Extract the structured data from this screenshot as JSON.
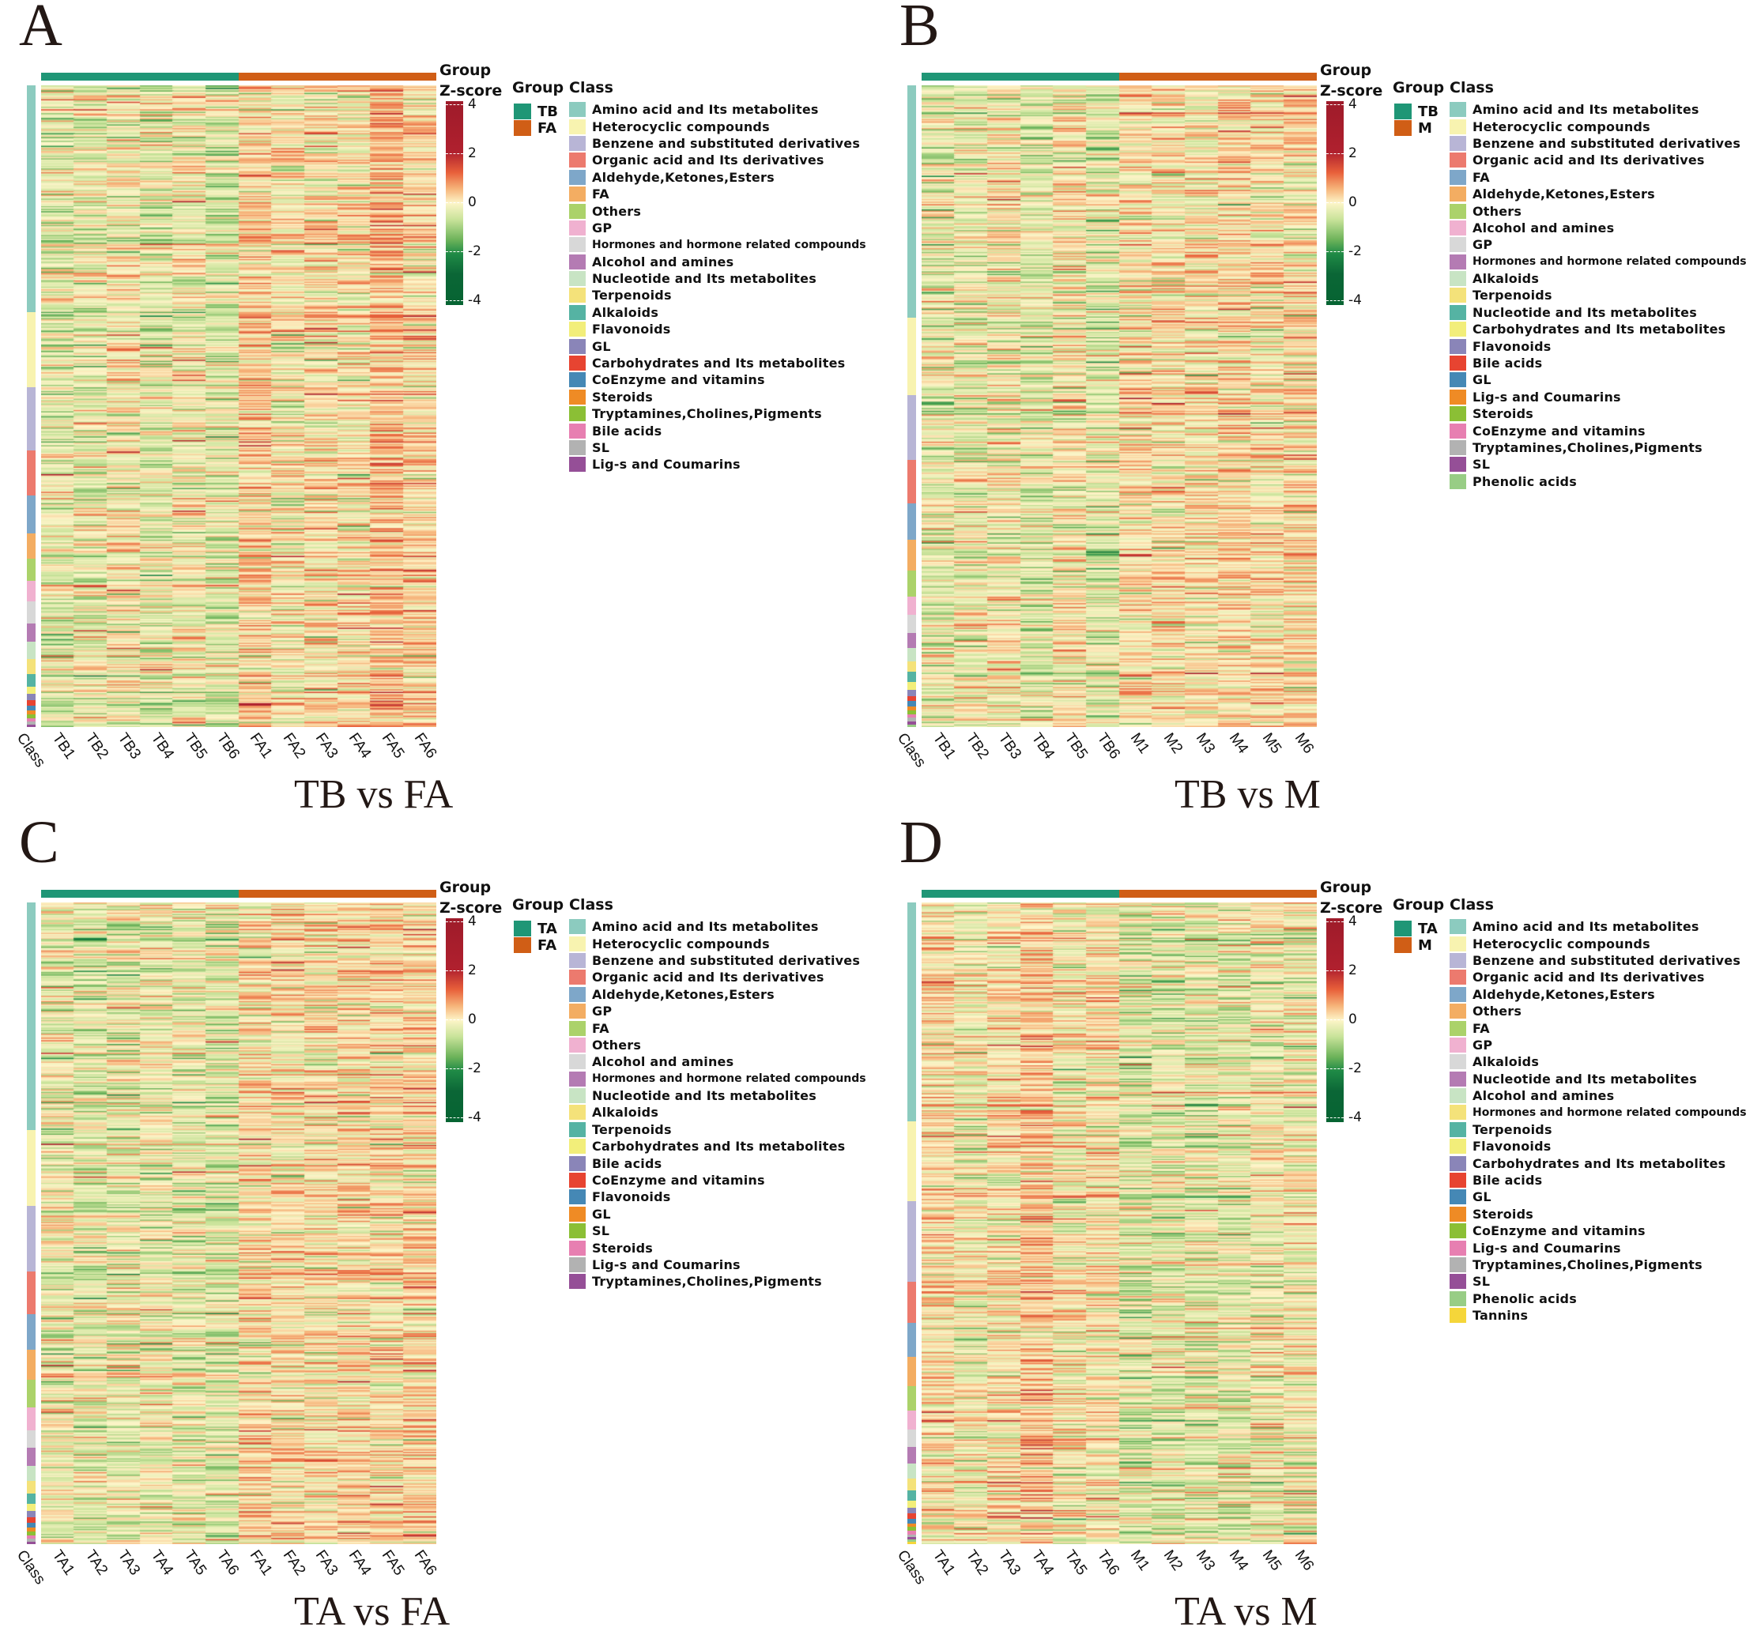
{
  "figure": {
    "zscore_title_line1": "Group",
    "zscore_title_line2": "Z-score",
    "zscore_ticks": [
      "4",
      "2",
      "0",
      "-2",
      "-4"
    ],
    "group_legend_title": "Group",
    "class_legend_title": "Class",
    "class_axis_label": "Class",
    "colormap": [
      "#066432",
      "#1f8a46",
      "#6db35a",
      "#c9e39a",
      "#fdf5c8",
      "#f6b47a",
      "#e8603a",
      "#b0202e",
      "#9e1b2a"
    ],
    "group_colors": {
      "treatment": "#1f9676",
      "control": "#d05e16"
    }
  },
  "panels": [
    {
      "letter": "A",
      "subtitle": "TB vs FA",
      "groups": [
        {
          "name": "TB",
          "color": "#1f9676"
        },
        {
          "name": "FA",
          "color": "#d05e16"
        }
      ],
      "samples": [
        "TB1",
        "TB2",
        "TB3",
        "TB4",
        "TB5",
        "TB6",
        "FA1",
        "FA2",
        "FA3",
        "FA4",
        "FA5",
        "FA6"
      ],
      "classes": [
        {
          "name": "Amino acid and Its metabolites",
          "color": "#8ccbbf",
          "rows": 180
        },
        {
          "name": "Heterocyclic compounds",
          "color": "#f8f3b0",
          "rows": 60
        },
        {
          "name": "Benzene and substituted derivatives",
          "color": "#b8b5d6",
          "rows": 50
        },
        {
          "name": "Organic acid and Its derivatives",
          "color": "#ec7a6e",
          "rows": 36
        },
        {
          "name": "Aldehyde,Ketones,Esters",
          "color": "#7ea7c9",
          "rows": 30
        },
        {
          "name": "FA",
          "color": "#f3ad62",
          "rows": 20
        },
        {
          "name": "Others",
          "color": "#abd26a",
          "rows": 18
        },
        {
          "name": "GP",
          "color": "#f0b1d0",
          "rows": 16
        },
        {
          "name": "Hormones and hormone related compounds",
          "color": "#d8d8d8",
          "rows": 18,
          "small": true
        },
        {
          "name": "Alcohol and amines",
          "color": "#b47bb3",
          "rows": 14
        },
        {
          "name": "Nucleotide and Its metabolites",
          "color": "#c8e4c4",
          "rows": 14
        },
        {
          "name": "Terpenoids",
          "color": "#f4e27a",
          "rows": 12
        },
        {
          "name": "Alkaloids",
          "color": "#55b3a3",
          "rows": 10
        },
        {
          "name": "Flavonoids",
          "color": "#f2ee7a",
          "rows": 6
        },
        {
          "name": "GL",
          "color": "#8a85b8",
          "rows": 5
        },
        {
          "name": "Carbohydrates and Its metabolites",
          "color": "#e74431",
          "rows": 4
        },
        {
          "name": "CoEnzyme and vitamins",
          "color": "#4588b5",
          "rows": 4
        },
        {
          "name": "Steroids",
          "color": "#ef8b25",
          "rows": 3
        },
        {
          "name": "Tryptamines,Cholines,Pigments",
          "color": "#8bbf35",
          "rows": 3
        },
        {
          "name": "Bile acids",
          "color": "#e77fb1",
          "rows": 3
        },
        {
          "name": "SL",
          "color": "#b2b2b2",
          "rows": 2
        },
        {
          "name": "Lig-s and Coumarins",
          "color": "#954f97",
          "rows": 2
        }
      ],
      "bias": [
        -0.5,
        -0.3,
        0.0,
        -0.5,
        -0.1,
        -0.6,
        0.6,
        0.1,
        0.3,
        0.2,
        1.0,
        0.5
      ]
    },
    {
      "letter": "B",
      "subtitle": "TB vs M",
      "groups": [
        {
          "name": "TB",
          "color": "#1f9676"
        },
        {
          "name": "M",
          "color": "#d05e16"
        }
      ],
      "samples": [
        "TB1",
        "TB2",
        "TB3",
        "TB4",
        "TB5",
        "TB6",
        "M1",
        "M2",
        "M3",
        "M4",
        "M5",
        "M6"
      ],
      "classes": [
        {
          "name": "Amino acid and Its metabolites",
          "color": "#8ccbbf",
          "rows": 180
        },
        {
          "name": "Heterocyclic compounds",
          "color": "#f8f3b0",
          "rows": 60
        },
        {
          "name": "Benzene and substituted derivatives",
          "color": "#b8b5d6",
          "rows": 50
        },
        {
          "name": "Organic acid and Its derivatives",
          "color": "#ec7a6e",
          "rows": 34
        },
        {
          "name": "FA",
          "color": "#7ea7c9",
          "rows": 28
        },
        {
          "name": "Aldehyde,Ketones,Esters",
          "color": "#f3ad62",
          "rows": 24
        },
        {
          "name": "Others",
          "color": "#abd26a",
          "rows": 20
        },
        {
          "name": "Alcohol and amines",
          "color": "#f0b1d0",
          "rows": 14
        },
        {
          "name": "GP",
          "color": "#d8d8d8",
          "rows": 14
        },
        {
          "name": "Hormones and hormone related compounds",
          "color": "#b47bb3",
          "rows": 12,
          "small": true
        },
        {
          "name": "Alkaloids",
          "color": "#c8e4c4",
          "rows": 10
        },
        {
          "name": "Terpenoids",
          "color": "#f4e27a",
          "rows": 8
        },
        {
          "name": "Nucleotide and Its metabolites",
          "color": "#55b3a3",
          "rows": 8
        },
        {
          "name": "Carbohydrates and Its metabolites",
          "color": "#f2ee7a",
          "rows": 6
        },
        {
          "name": "Flavonoids",
          "color": "#8a85b8",
          "rows": 5
        },
        {
          "name": "Bile acids",
          "color": "#e74431",
          "rows": 4
        },
        {
          "name": "GL",
          "color": "#4588b5",
          "rows": 4
        },
        {
          "name": "Lig-s and Coumarins",
          "color": "#ef8b25",
          "rows": 3
        },
        {
          "name": "Steroids",
          "color": "#8bbf35",
          "rows": 3
        },
        {
          "name": "CoEnzyme and vitamins",
          "color": "#e77fb1",
          "rows": 3
        },
        {
          "name": "Tryptamines,Cholines,Pigments",
          "color": "#b2b2b2",
          "rows": 3
        },
        {
          "name": "SL",
          "color": "#954f97",
          "rows": 2
        },
        {
          "name": "Phenolic acids",
          "color": "#98cd85",
          "rows": 2
        }
      ],
      "bias": [
        -0.4,
        -0.3,
        0.0,
        -0.5,
        0.1,
        -0.5,
        0.3,
        0.2,
        0.2,
        0.4,
        0.2,
        0.4
      ]
    },
    {
      "letter": "C",
      "subtitle": "TA vs FA",
      "groups": [
        {
          "name": "TA",
          "color": "#1f9676"
        },
        {
          "name": "FA",
          "color": "#d05e16"
        }
      ],
      "samples": [
        "TA1",
        "TA2",
        "TA3",
        "TA4",
        "TA5",
        "TA6",
        "FA1",
        "FA2",
        "FA3",
        "FA4",
        "FA5",
        "FA6"
      ],
      "classes": [
        {
          "name": "Amino acid and Its metabolites",
          "color": "#8ccbbf",
          "rows": 180
        },
        {
          "name": "Heterocyclic compounds",
          "color": "#f8f3b0",
          "rows": 60
        },
        {
          "name": "Benzene and substituted derivatives",
          "color": "#b8b5d6",
          "rows": 52
        },
        {
          "name": "Organic acid and Its derivatives",
          "color": "#ec7a6e",
          "rows": 34
        },
        {
          "name": "Aldehyde,Ketones,Esters",
          "color": "#7ea7c9",
          "rows": 28
        },
        {
          "name": "GP",
          "color": "#f3ad62",
          "rows": 24
        },
        {
          "name": "FA",
          "color": "#abd26a",
          "rows": 22
        },
        {
          "name": "Others",
          "color": "#f0b1d0",
          "rows": 18
        },
        {
          "name": "Alcohol and amines",
          "color": "#d8d8d8",
          "rows": 14
        },
        {
          "name": "Hormones and hormone related compounds",
          "color": "#b47bb3",
          "rows": 14,
          "small": true
        },
        {
          "name": "Nucleotide and Its metabolites",
          "color": "#c8e4c4",
          "rows": 12
        },
        {
          "name": "Alkaloids",
          "color": "#f4e27a",
          "rows": 10
        },
        {
          "name": "Terpenoids",
          "color": "#55b3a3",
          "rows": 8
        },
        {
          "name": "Carbohydrates and Its metabolites",
          "color": "#f2ee7a",
          "rows": 6
        },
        {
          "name": "Bile acids",
          "color": "#8a85b8",
          "rows": 5
        },
        {
          "name": "CoEnzyme and vitamins",
          "color": "#e74431",
          "rows": 4
        },
        {
          "name": "Flavonoids",
          "color": "#4588b5",
          "rows": 4
        },
        {
          "name": "GL",
          "color": "#ef8b25",
          "rows": 3
        },
        {
          "name": "SL",
          "color": "#8bbf35",
          "rows": 3
        },
        {
          "name": "Steroids",
          "color": "#e77fb1",
          "rows": 3
        },
        {
          "name": "Lig-s and Coumarins",
          "color": "#b2b2b2",
          "rows": 2
        },
        {
          "name": "Tryptamines,Cholines,Pigments",
          "color": "#954f97",
          "rows": 2
        }
      ],
      "bias": [
        -0.3,
        -0.5,
        -0.3,
        -0.2,
        -0.4,
        -0.5,
        0.4,
        0.3,
        0.3,
        0.4,
        0.4,
        0.5
      ]
    },
    {
      "letter": "D",
      "subtitle": "TA vs M",
      "groups": [
        {
          "name": "TA",
          "color": "#1f9676"
        },
        {
          "name": "M",
          "color": "#d05e16"
        }
      ],
      "samples": [
        "TA1",
        "TA2",
        "TA3",
        "TA4",
        "TA5",
        "TA6",
        "M1",
        "M2",
        "M3",
        "M4",
        "M5",
        "M6"
      ],
      "classes": [
        {
          "name": "Amino acid and Its metabolites",
          "color": "#8ccbbf",
          "rows": 180
        },
        {
          "name": "Heterocyclic compounds",
          "color": "#f8f3b0",
          "rows": 66
        },
        {
          "name": "Benzene and substituted derivatives",
          "color": "#b8b5d6",
          "rows": 66
        },
        {
          "name": "Organic acid and Its derivatives",
          "color": "#ec7a6e",
          "rows": 34
        },
        {
          "name": "Aldehyde,Ketones,Esters",
          "color": "#7ea7c9",
          "rows": 28
        },
        {
          "name": "Others",
          "color": "#f3ad62",
          "rows": 24
        },
        {
          "name": "FA",
          "color": "#abd26a",
          "rows": 20
        },
        {
          "name": "GP",
          "color": "#f0b1d0",
          "rows": 16
        },
        {
          "name": "Alkaloids",
          "color": "#d8d8d8",
          "rows": 14
        },
        {
          "name": "Nucleotide and Its metabolites",
          "color": "#b47bb3",
          "rows": 14
        },
        {
          "name": "Alcohol and amines",
          "color": "#c8e4c4",
          "rows": 12
        },
        {
          "name": "Hormones and hormone related compounds",
          "color": "#f4e27a",
          "rows": 10,
          "small": true
        },
        {
          "name": "Terpenoids",
          "color": "#55b3a3",
          "rows": 8
        },
        {
          "name": "Flavonoids",
          "color": "#f2ee7a",
          "rows": 6
        },
        {
          "name": "Carbohydrates and Its metabolites",
          "color": "#8a85b8",
          "rows": 5
        },
        {
          "name": "Bile acids",
          "color": "#e74431",
          "rows": 4
        },
        {
          "name": "GL",
          "color": "#4588b5",
          "rows": 4
        },
        {
          "name": "Steroids",
          "color": "#ef8b25",
          "rows": 3
        },
        {
          "name": "CoEnzyme and vitamins",
          "color": "#8bbf35",
          "rows": 3
        },
        {
          "name": "Lig-s and Coumarins",
          "color": "#e77fb1",
          "rows": 3
        },
        {
          "name": "Tryptamines,Cholines,Pigments",
          "color": "#b2b2b2",
          "rows": 2
        },
        {
          "name": "SL",
          "color": "#954f97",
          "rows": 2
        },
        {
          "name": "Phenolic acids",
          "color": "#98cd85",
          "rows": 2
        },
        {
          "name": "Tannins",
          "color": "#f5d63a",
          "rows": 2
        }
      ],
      "bias": [
        0.4,
        -0.1,
        0.3,
        0.8,
        0.0,
        0.2,
        -0.6,
        -0.5,
        -0.5,
        -0.4,
        -0.2,
        -0.2
      ]
    }
  ],
  "chart_data": [
    {
      "type": "heatmap",
      "title": "TB vs FA",
      "panel": "A",
      "x": [
        "TB1",
        "TB2",
        "TB3",
        "TB4",
        "TB5",
        "TB6",
        "FA1",
        "FA2",
        "FA3",
        "FA4",
        "FA5",
        "FA6"
      ],
      "row_annotation": "Class",
      "column_annotation": "Group",
      "groups": [
        "TB",
        "FA"
      ],
      "colorbar": {
        "label": "Z-score",
        "range": [
          -4,
          4
        ],
        "ticks": [
          4,
          2,
          0,
          -2,
          -4
        ]
      },
      "note": "Rows are metabolites grouped by class; FA samples (esp. FA5) show higher Z-scores than TB samples"
    },
    {
      "type": "heatmap",
      "title": "TB vs M",
      "panel": "B",
      "x": [
        "TB1",
        "TB2",
        "TB3",
        "TB4",
        "TB5",
        "TB6",
        "M1",
        "M2",
        "M3",
        "M4",
        "M5",
        "M6"
      ],
      "row_annotation": "Class",
      "column_annotation": "Group",
      "groups": [
        "TB",
        "M"
      ],
      "colorbar": {
        "label": "Z-score",
        "range": [
          -4,
          4
        ],
        "ticks": [
          4,
          2,
          0,
          -2,
          -4
        ]
      }
    },
    {
      "type": "heatmap",
      "title": "TA vs FA",
      "panel": "C",
      "x": [
        "TA1",
        "TA2",
        "TA3",
        "TA4",
        "TA5",
        "TA6",
        "FA1",
        "FA2",
        "FA3",
        "FA4",
        "FA5",
        "FA6"
      ],
      "row_annotation": "Class",
      "column_annotation": "Group",
      "groups": [
        "TA",
        "FA"
      ],
      "colorbar": {
        "label": "Z-score",
        "range": [
          -4,
          4
        ],
        "ticks": [
          4,
          2,
          0,
          -2,
          -4
        ]
      }
    },
    {
      "type": "heatmap",
      "title": "TA vs M",
      "panel": "D",
      "x": [
        "TA1",
        "TA2",
        "TA3",
        "TA4",
        "TA5",
        "TA6",
        "M1",
        "M2",
        "M3",
        "M4",
        "M5",
        "M6"
      ],
      "row_annotation": "Class",
      "column_annotation": "Group",
      "groups": [
        "TA",
        "M"
      ],
      "colorbar": {
        "label": "Z-score",
        "range": [
          -4,
          4
        ],
        "ticks": [
          4,
          2,
          0,
          -2,
          -4
        ]
      },
      "note": "TA samples (esp. TA4) show higher Z-scores in amino acid block; M samples greener"
    }
  ]
}
